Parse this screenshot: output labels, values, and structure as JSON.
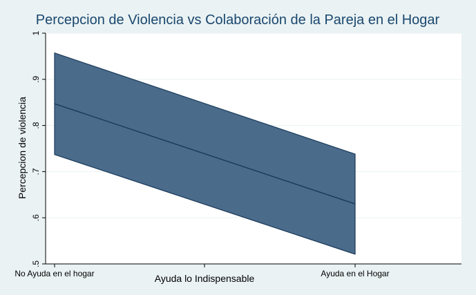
{
  "chart_data": {
    "type": "area",
    "title": "Percepcion de Violencia vs Colaboración de la Pareja en el Hogar",
    "xlabel": "Ayuda lo Indispensable",
    "ylabel": "Percepcion de violencia",
    "categories": [
      "No Ayuda en el hogar",
      "",
      "Ayuda en el Hogar"
    ],
    "x": [
      0,
      2
    ],
    "xlim": [
      0,
      3
    ],
    "ylim": [
      0.5,
      1.0
    ],
    "yticks": [
      0.5,
      0.6,
      0.7,
      0.8,
      0.9,
      1.0
    ],
    "ytick_labels": [
      ".5",
      ".6",
      ".7",
      ".8",
      ".9",
      "1"
    ],
    "grid": true,
    "legend": "none",
    "series": [
      {
        "role": "estimate",
        "values": [
          0.847,
          0.63
        ]
      },
      {
        "role": "ci_lower",
        "values": [
          0.737,
          0.521
        ]
      },
      {
        "role": "ci_upper",
        "values": [
          0.957,
          0.738
        ]
      }
    ],
    "colors": {
      "background": "#eaf2f3",
      "plot_background": "#ffffff",
      "band_fill": "#4a6b8a",
      "band_edge": "#1a3a5a",
      "line": "#1a3a5a",
      "grid": "#eaf2f3",
      "title": "#1a476f"
    }
  }
}
